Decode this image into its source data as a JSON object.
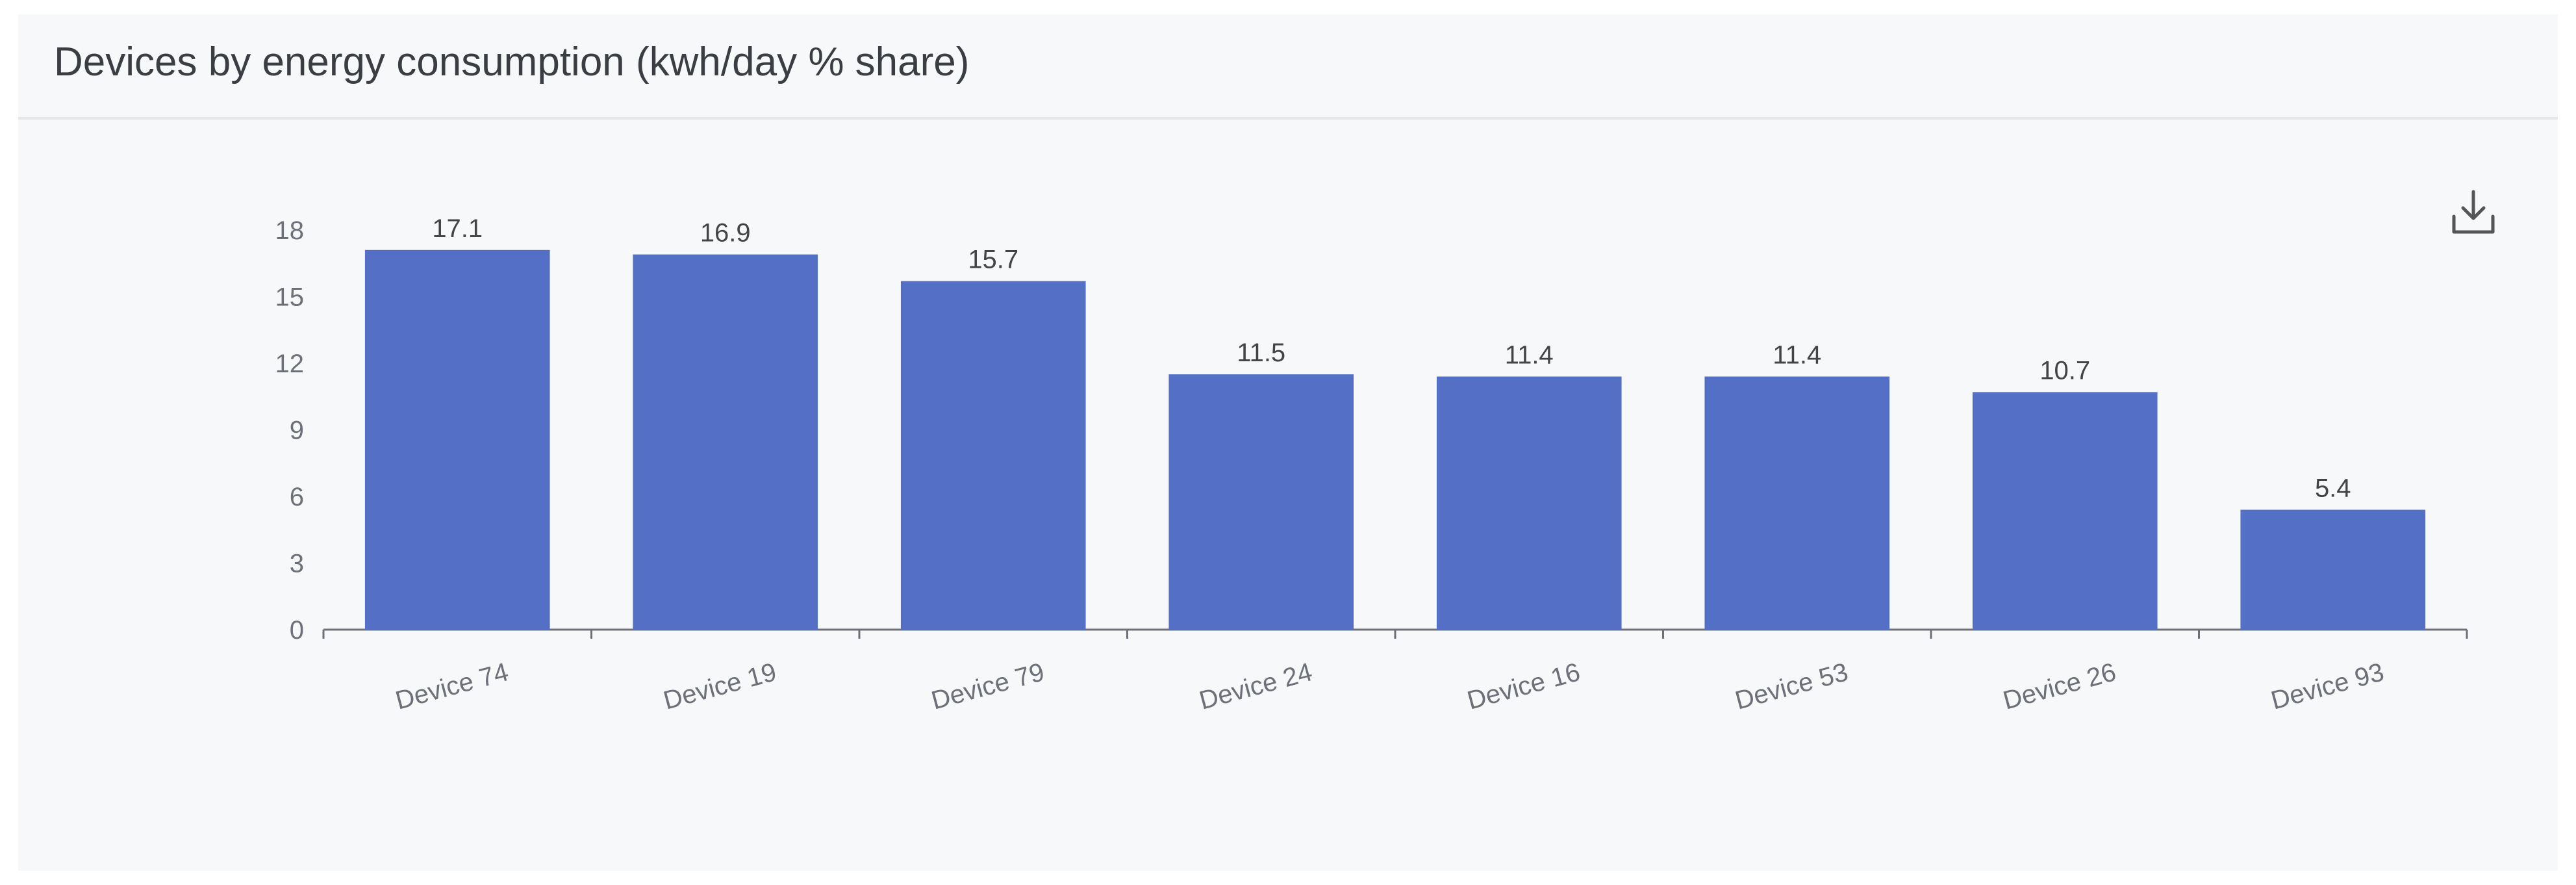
{
  "card": {
    "title": "Devices by energy consumption (kwh/day % share)"
  },
  "toolbar": {
    "download_icon": "download-icon"
  },
  "colors": {
    "bar": "#5470c6",
    "axis": "#6e7079",
    "label": "#444444"
  },
  "chart_data": {
    "type": "bar",
    "title": "Devices by energy consumption (kwh/day % share)",
    "categories": [
      "Device 74",
      "Device 19",
      "Device 79",
      "Device 24",
      "Device 16",
      "Device 53",
      "Device 26",
      "Device 93"
    ],
    "values": [
      17.1,
      16.9,
      15.7,
      11.5,
      11.4,
      11.4,
      10.7,
      5.4
    ],
    "data_labels": [
      "17.1",
      "16.9",
      "15.7",
      "11.5",
      "11.4",
      "11.4",
      "10.7",
      "5.4"
    ],
    "y_ticks": [
      "0",
      "3",
      "6",
      "9",
      "12",
      "15",
      "18"
    ],
    "ylim": [
      0,
      18
    ],
    "xlabel": "",
    "ylabel": "",
    "grid": false,
    "legend": "none",
    "x_label_rotation_deg": -15
  }
}
